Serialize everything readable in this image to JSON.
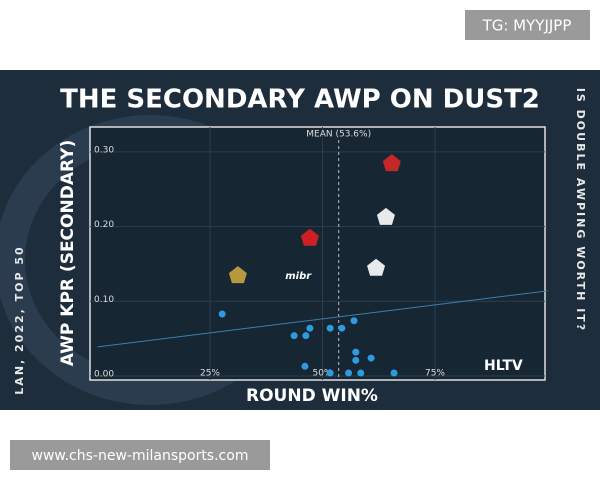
{
  "header": {
    "tag": "TG: MYYJJPP"
  },
  "footer": {
    "watermark": "www.chs-new-milansports.com"
  },
  "side_left": "LAN, 2022, TOP 50",
  "side_right": "IS DOUBLE AWPING WORTH IT?",
  "brand": "HLTV",
  "chart_data": {
    "type": "scatter",
    "title": "THE SECONDARY AWP ON DUST2",
    "x_label": "ROUND WIN%",
    "y_label": "AWP KPR (SECONDARY)",
    "xlim": [
      0,
      100
    ],
    "ylim": [
      0,
      0.33
    ],
    "xticks": [
      {
        "value": 25,
        "label": "25%"
      },
      {
        "value": 50,
        "label": "50%"
      },
      {
        "value": 75,
        "label": "75%"
      }
    ],
    "yticks": [
      {
        "value": 0,
        "label": "0.00"
      },
      {
        "value": 0.1,
        "label": "0.10"
      },
      {
        "value": 0.2,
        "label": "0.20"
      },
      {
        "value": 0.3,
        "label": "0.30"
      }
    ],
    "grid": true,
    "mean": {
      "value": 53.6,
      "label": "MEAN (53.6%)"
    },
    "trendline": {
      "x": [
        0,
        100
      ],
      "y": [
        0.039,
        0.114
      ]
    },
    "series": [
      {
        "color": "#2e9be0",
        "x": [
          27.7,
          43.7,
          46.3,
          47.2,
          51.7,
          54.3,
          57.0,
          46.1,
          51.7,
          57.4,
          57.4,
          60.8,
          55.8,
          58.5,
          65.9
        ],
        "values": [
          0.083,
          0.054,
          0.054,
          0.064,
          0.064,
          0.064,
          0.074,
          0.013,
          0.004,
          0.032,
          0.021,
          0.024,
          0.004,
          0.004,
          0.004
        ]
      },
      {
        "colors": [
          "#c9a640",
          "#ffffff",
          "#e02020",
          "#d62828",
          "#ffffff",
          "#ffffff"
        ],
        "labels": [
          null,
          "mibr",
          null,
          null,
          null,
          null
        ],
        "x": [
          31.2,
          44.6,
          47.2,
          65.4,
          64.1,
          61.9
        ],
        "values": [
          0.135,
          0.134,
          0.185,
          0.285,
          0.213,
          0.145
        ]
      }
    ]
  }
}
